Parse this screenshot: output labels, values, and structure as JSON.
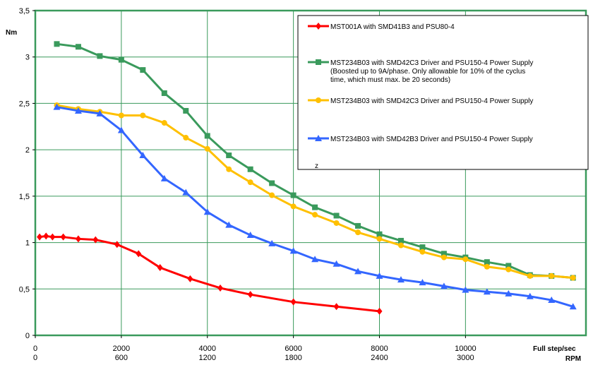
{
  "chart_data": {
    "type": "line",
    "title": "",
    "ylabel": "Nm",
    "xlabel_primary": "Full step/sec",
    "xlabel_secondary": "RPM",
    "xlim": [
      0,
      12800
    ],
    "ylim": [
      0,
      3.5
    ],
    "y_ticks": [
      {
        "value": 0,
        "label": "0"
      },
      {
        "value": 0.5,
        "label": "0,5"
      },
      {
        "value": 1,
        "label": "1"
      },
      {
        "value": 1.5,
        "label": "1,5"
      },
      {
        "value": 2,
        "label": "2"
      },
      {
        "value": 2.5,
        "label": "2,5"
      },
      {
        "value": 3,
        "label": "3"
      },
      {
        "value": 3.5,
        "label": "3,5"
      }
    ],
    "x_ticks": [
      {
        "value": 0,
        "label": "0"
      },
      {
        "value": 2000,
        "label": "2000"
      },
      {
        "value": 4000,
        "label": "4000"
      },
      {
        "value": 6000,
        "label": "6000"
      },
      {
        "value": 8000,
        "label": "8000"
      },
      {
        "value": 10000,
        "label": "10000"
      }
    ],
    "x2_ticks": [
      {
        "value": 0,
        "label": "0"
      },
      {
        "value": 2000,
        "label": "600"
      },
      {
        "value": 4000,
        "label": "1200"
      },
      {
        "value": 6000,
        "label": "1800"
      },
      {
        "value": 8000,
        "label": "2400"
      },
      {
        "value": 10000,
        "label": "3000"
      }
    ],
    "x_gridlines": [
      2000,
      4000,
      6000,
      8000,
      10000
    ],
    "grid": true,
    "legend_position": "top-right",
    "stray_text": "z",
    "series": [
      {
        "name": "MST001A with SMD41B3 and PSU80-4",
        "color": "#ff0000",
        "marker": "diamond",
        "x": [
          100,
          250,
          400,
          650,
          1000,
          1400,
          1900,
          2400,
          2900,
          3600,
          4300,
          5000,
          6000,
          7000,
          8000
        ],
        "y": [
          1.06,
          1.07,
          1.06,
          1.06,
          1.04,
          1.03,
          0.98,
          0.88,
          0.73,
          0.61,
          0.51,
          0.44,
          0.36,
          0.31,
          0.26
        ]
      },
      {
        "name": "MST234B03 with SMD42C3 Driver and PSU150-4 Power Supply (Boosted up to 9A/phase. Only allowable for 10% of the cyclus time, which must max. be 20 seconds)",
        "legend_lines": [
          "MST234B03 with SMD42C3 Driver and PSU150-4 Power Supply",
          "(Boosted up to 9A/phase. Only allowable for 10% of the cyclus",
          "time, which must max. be 20 seconds)"
        ],
        "color": "#3a9a5c",
        "marker": "square",
        "x": [
          500,
          1000,
          1500,
          2000,
          2500,
          3000,
          3500,
          4000,
          4500,
          5000,
          5500,
          6000,
          6500,
          7000,
          7500,
          8000,
          8500,
          9000,
          9500,
          10000,
          10500,
          11000,
          11500,
          12000,
          12500
        ],
        "y": [
          3.14,
          3.11,
          3.01,
          2.97,
          2.86,
          2.61,
          2.42,
          2.15,
          1.94,
          1.79,
          1.64,
          1.51,
          1.38,
          1.29,
          1.18,
          1.09,
          1.02,
          0.95,
          0.88,
          0.84,
          0.79,
          0.75,
          0.65,
          0.64,
          0.62
        ]
      },
      {
        "name": "MST234B03 with SMD42C3 Driver and PSU150-4 Power Supply",
        "color": "#ffc000",
        "marker": "circle",
        "x": [
          500,
          1000,
          1500,
          2000,
          2500,
          3000,
          3500,
          4000,
          4500,
          5000,
          5500,
          6000,
          6500,
          7000,
          7500,
          8000,
          8500,
          9000,
          9500,
          10000,
          10500,
          11000,
          11500,
          12000,
          12500
        ],
        "y": [
          2.48,
          2.44,
          2.41,
          2.37,
          2.37,
          2.29,
          2.13,
          2.01,
          1.79,
          1.65,
          1.51,
          1.39,
          1.3,
          1.21,
          1.11,
          1.04,
          0.97,
          0.9,
          0.84,
          0.82,
          0.74,
          0.71,
          0.64,
          0.64,
          0.62
        ]
      },
      {
        "name": "MST234B03 with SMD42B3 Driver and PSU150-4 Power Supply",
        "color": "#3366ff",
        "marker": "triangle",
        "x": [
          500,
          1000,
          1500,
          2000,
          2500,
          3000,
          3500,
          4000,
          4500,
          5000,
          5500,
          6000,
          6500,
          7000,
          7500,
          8000,
          8500,
          9000,
          9500,
          10000,
          10500,
          11000,
          11500,
          12000,
          12500
        ],
        "y": [
          2.46,
          2.42,
          2.39,
          2.21,
          1.94,
          1.69,
          1.54,
          1.33,
          1.19,
          1.08,
          0.99,
          0.91,
          0.82,
          0.77,
          0.69,
          0.64,
          0.6,
          0.57,
          0.53,
          0.49,
          0.47,
          0.45,
          0.42,
          0.38,
          0.31
        ]
      }
    ]
  }
}
